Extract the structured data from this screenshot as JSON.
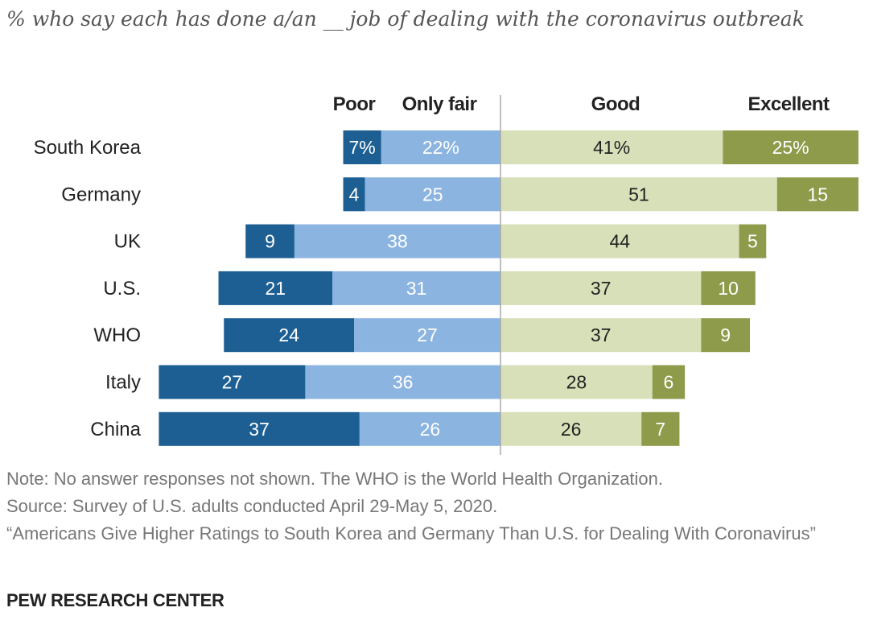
{
  "chart_data": {
    "type": "bar",
    "stacked": "diverging",
    "title": "% who say each has done a/an __ job of dealing with the coronavirus outbreak",
    "categories": [
      "South Korea",
      "Germany",
      "UK",
      "U.S.",
      "WHO",
      "Italy",
      "China"
    ],
    "series": [
      {
        "name": "Poor",
        "side": "negative",
        "color": "#1d5f93",
        "text_color": "#ffffff",
        "values": [
          7,
          4,
          9,
          21,
          24,
          27,
          37
        ],
        "labels": [
          "7%",
          "4",
          "9",
          "21",
          "24",
          "27",
          "37"
        ]
      },
      {
        "name": "Only fair",
        "side": "negative",
        "color": "#8bb4e0",
        "text_color": "#ffffff",
        "values": [
          22,
          25,
          38,
          31,
          27,
          36,
          26
        ],
        "labels": [
          "22%",
          "25",
          "38",
          "31",
          "27",
          "36",
          "26"
        ]
      },
      {
        "name": "Good",
        "side": "positive",
        "color": "#d7e0b8",
        "text_color": "#222222",
        "values": [
          41,
          51,
          44,
          37,
          37,
          28,
          26
        ],
        "labels": [
          "41%",
          "51",
          "44",
          "37",
          "37",
          "28",
          "26"
        ]
      },
      {
        "name": "Excellent",
        "side": "positive",
        "color": "#8d9b4b",
        "text_color": "#ffffff",
        "values": [
          25,
          15,
          5,
          10,
          9,
          6,
          7
        ],
        "labels": [
          "25%",
          "15",
          "5",
          "10",
          "9",
          "6",
          "7"
        ]
      }
    ]
  },
  "notes": {
    "note": "Note: No answer responses not shown. The WHO is the World Health Organization.",
    "source": "Source: Survey of U.S. adults conducted April 29-May 5, 2020.",
    "report": "“Americans Give Higher Ratings to South Korea and Germany Than U.S. for Dealing With Coronavirus”"
  },
  "brand": "PEW RESEARCH CENTER"
}
